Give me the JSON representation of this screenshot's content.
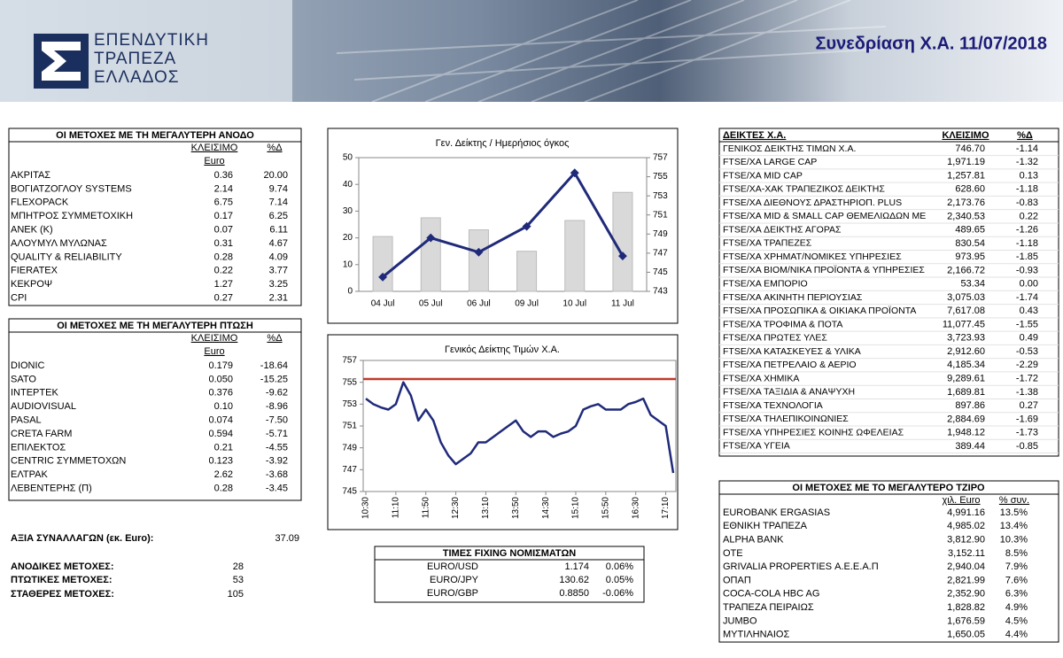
{
  "header": {
    "logo": [
      "ΕΠΕΝΔΥΤΙΚΗ",
      "ΤΡΑΠΕΖΑ",
      "ΕΛΛΑΔΟΣ"
    ],
    "title": "Συνεδρίαση Χ.Α. 11/07/2018"
  },
  "gainers": {
    "title": "ΟΙ ΜΕΤΟΧΕΣ ΜΕ ΤΗ ΜΕΓΑΛΥΤΕΡΗ ΑΝΟΔΟ",
    "headers": [
      "ΚΛΕΙΣΙΜΟ",
      "%Δ"
    ],
    "unit": "Euro",
    "rows": [
      [
        "ΑΚΡΙΤΑΣ",
        "0.36",
        "20.00"
      ],
      [
        "ΒΟΓΙΑΤΖΟΓΛΟΥ SYSTEMS",
        "2.14",
        "9.74"
      ],
      [
        "FLEXOPACK",
        "6.75",
        "7.14"
      ],
      [
        "ΜΠΗΤΡΟΣ ΣΥΜΜΕΤΟΧΙΚΗ",
        "0.17",
        "6.25"
      ],
      [
        "ΑΝΕΚ (Κ)",
        "0.07",
        "6.11"
      ],
      [
        "ΑΛΟΥΜΥΛ ΜΥΛΩΝΑΣ",
        "0.31",
        "4.67"
      ],
      [
        "QUALITY & RELIABILITY",
        "0.28",
        "4.09"
      ],
      [
        "FIERATEX",
        "0.22",
        "3.77"
      ],
      [
        "ΚΕΚΡΟΨ",
        "1.27",
        "3.25"
      ],
      [
        "CPI",
        "0.27",
        "2.31"
      ]
    ]
  },
  "losers": {
    "title": "ΟΙ ΜΕΤΟΧΕΣ ΜΕ ΤΗ ΜΕΓΑΛΥΤΕΡΗ ΠΤΩΣΗ",
    "headers": [
      "ΚΛΕΙΣΙΜΟ",
      "%Δ"
    ],
    "unit": "Euro",
    "rows": [
      [
        "DIONIC",
        "0.179",
        "-18.64"
      ],
      [
        "SATO",
        "0.050",
        "-15.25"
      ],
      [
        "ΙΝΤΕΡΤΕΚ",
        "0.376",
        "-9.62"
      ],
      [
        "AUDIOVISUAL",
        "0.10",
        "-8.96"
      ],
      [
        "PASAL",
        "0.074",
        "-7.50"
      ],
      [
        "CRETA FARM",
        "0.594",
        "-5.71"
      ],
      [
        "ΕΠΙΛΕΚΤΟΣ",
        "0.21",
        "-4.55"
      ],
      [
        "CENTRIC ΣΥΜΜΕΤΟΧΩΝ",
        "0.123",
        "-3.92"
      ],
      [
        "ΕΛΤΡΑΚ",
        "2.62",
        "-3.68"
      ],
      [
        "ΛΕΒΕΝΤΕΡΗΣ (Π)",
        "0.28",
        "-3.45"
      ]
    ]
  },
  "summary": [
    {
      "label": "ΑΞΙΑ ΣΥΝΑΛΛΑΓΩΝ (εκ. Euro):",
      "value": "37.09"
    },
    {
      "label": "ΑΝΟΔΙΚΕΣ ΜΕΤΟΧΕΣ:",
      "value": "28"
    },
    {
      "label": "ΠΤΩΤΙΚΕΣ ΜΕΤΟΧΕΣ:",
      "value": "53"
    },
    {
      "label": "ΣΤΑΘΕΡΕΣ ΜΕΤΟΧΕΣ:",
      "value": "105"
    }
  ],
  "chart_data": [
    {
      "type": "combo",
      "title": "Γεν. Δείκτης / Ημερήσιος όγκος",
      "categories": [
        "04 Jul",
        "05 Jul",
        "06 Jul",
        "09 Jul",
        "10 Jul",
        "11 Jul"
      ],
      "series": [
        {
          "type": "bar",
          "color": "#d9d9d9",
          "values": [
            20.5,
            27.5,
            23,
            15,
            26.5,
            37
          ]
        },
        {
          "type": "line",
          "axis": "y2",
          "color": "#1f2a7a",
          "values": [
            744.5,
            748.6,
            747.1,
            749.8,
            755.4,
            746.7
          ]
        }
      ],
      "ylim": [
        0,
        50
      ],
      "yticks": [
        0,
        10,
        20,
        30,
        40,
        50
      ],
      "y2lim": [
        743,
        757
      ],
      "y2ticks": [
        743,
        745,
        747,
        749,
        751,
        753,
        755,
        757
      ]
    },
    {
      "type": "line",
      "title": "Γενικός Δείκτης Τιμών Χ.Α.",
      "categories": [
        "10:30",
        null,
        null,
        null,
        "11:10",
        null,
        null,
        null,
        "11:50",
        null,
        null,
        null,
        "12:30",
        null,
        null,
        null,
        "13:10",
        null,
        null,
        null,
        "13:50",
        null,
        null,
        null,
        "14:30",
        null,
        null,
        null,
        "15:10",
        null,
        null,
        null,
        "15:50",
        null,
        null,
        null,
        "16:30",
        null,
        null,
        null,
        "17:10",
        null
      ],
      "series": [
        {
          "color": "#1f2a7a",
          "values": [
            753.5,
            753,
            752.7,
            752.5,
            753,
            755,
            753.8,
            751.5,
            752.5,
            751.5,
            749.5,
            748.3,
            747.5,
            748,
            748.5,
            749.5,
            749.5,
            750,
            750.5,
            751,
            751.5,
            750.5,
            750,
            750.5,
            750.5,
            750,
            750.3,
            750.5,
            751,
            752.5,
            752.8,
            753,
            752.5,
            752.5,
            752.5,
            753,
            753.2,
            753.5,
            752,
            751.5,
            751,
            746.7
          ]
        }
      ],
      "reference_line": {
        "value": 755.3,
        "color": "#c0392b"
      },
      "ylim": [
        745,
        757
      ],
      "yticks": [
        745,
        747,
        749,
        751,
        753,
        755,
        757
      ]
    }
  ],
  "fx": {
    "title": "ΤΙΜΕΣ FIXING ΝΟΜΙΣΜΑΤΩΝ",
    "rows": [
      [
        "EURO/USD",
        "1.174",
        "0.06%"
      ],
      [
        "EURO/JPY",
        "130.62",
        "0.05%"
      ],
      [
        "EURO/GBP",
        "0.8850",
        "-0.06%"
      ]
    ]
  },
  "indices": {
    "headers": [
      "ΔΕΙΚΤΕΣ Χ.Α.",
      "ΚΛΕΙΣΙΜΟ",
      "%Δ"
    ],
    "rows": [
      [
        "ΓΕΝΙΚΟΣ ΔΕΙΚΤΗΣ ΤΙΜΩΝ Χ.Α.",
        "746.70",
        "-1.14"
      ],
      [
        "FTSE/XA LARGE CAP",
        "1,971.19",
        "-1.32"
      ],
      [
        "FTSE/XA MID CAP",
        "1,257.81",
        "0.13"
      ],
      [
        "FTSE/XA-XAK ΤΡΑΠΕΖΙΚΟΣ ΔΕΙΚΤΗΣ",
        "628.60",
        "-1.18"
      ],
      [
        "FTSE/XA ΔΙΕΘΝΟΥΣ ΔΡΑΣΤΗΡΙΟΠ. PLUS",
        "2,173.76",
        "-0.83"
      ],
      [
        "FTSE/XA MID & SMALL CAP ΘΕΜΕΛΙΩΔΩΝ ΜΕ",
        "2,340.53",
        "0.22"
      ],
      [
        "FTSE/XA ΔΕΙΚΤΗΣ ΑΓΟΡΑΣ",
        "489.65",
        "-1.26"
      ],
      [
        "FTSE/XA ΤΡΑΠΕΖΕΣ",
        "830.54",
        "-1.18"
      ],
      [
        "FTSE/XA ΧΡΗΜΑΤ/ΝΟΜΙΚΕΣ ΥΠΗΡΕΣΙΕΣ",
        "973.95",
        "-1.85"
      ],
      [
        "FTSE/XA ΒΙΟΜ/ΝΙΚΑ ΠΡΟΪΟΝΤΑ & ΥΠΗΡΕΣΙΕΣ",
        "2,166.72",
        "-0.93"
      ],
      [
        "FTSE/XA ΕΜΠΟΡΙΟ",
        "53.34",
        "0.00"
      ],
      [
        "FTSE/XA ΑΚΙΝΗΤΗ ΠΕΡΙΟΥΣΙΑΣ",
        "3,075.03",
        "-1.74"
      ],
      [
        "FTSE/XA ΠΡΟΣΩΠΙΚΑ & ΟΙΚΙΑΚΑ ΠΡΟΪΟΝΤΑ",
        "7,617.08",
        "0.43"
      ],
      [
        "FTSE/XA ΤΡΟΦΙΜΑ & ΠΟΤΑ",
        "11,077.45",
        "-1.55"
      ],
      [
        "FTSE/XA ΠΡΩΤΕΣ ΥΛΕΣ",
        "3,723.93",
        "0.49"
      ],
      [
        "FTSE/XA ΚΑΤΑΣΚΕΥΕΣ & ΥΛΙΚΑ",
        "2,912.60",
        "-0.53"
      ],
      [
        "FTSE/XA ΠΕΤΡΕΛΑΙΟ & ΑΕΡΙΟ",
        "4,185.34",
        "-2.29"
      ],
      [
        "FTSE/XA ΧΗΜΙΚΑ",
        "9,289.61",
        "-1.72"
      ],
      [
        "FTSE/XA ΤΑΞΙΔΙΑ & ΑΝΑΨΥΧΗ",
        "1,689.81",
        "-1.38"
      ],
      [
        "FTSE/XA ΤΕΧΝΟΛΟΓΙΑ",
        "897.86",
        "0.27"
      ],
      [
        "FTSE/XA ΤΗΛΕΠΙΚΟΙΝΩΝΙΕΣ",
        "2,884.69",
        "-1.69"
      ],
      [
        "FTSE/XA ΥΠΗΡΕΣΙΕΣ ΚΟΙΝΗΣ ΩΦΕΛΕΙΑΣ",
        "1,948.12",
        "-1.73"
      ],
      [
        "FTSE/XA ΥΓΕΙΑ",
        "389.44",
        "-0.85"
      ]
    ]
  },
  "turnover": {
    "title": "ΟΙ ΜΕΤΟΧΕΣ ΜΕ ΤΟ ΜΕΓΑΛΥΤΕΡΟ ΤΖΙΡΟ",
    "headers": [
      "χιλ. Euro",
      "% συν."
    ],
    "rows": [
      [
        "EUROBANK ERGASIAS",
        "4,991.16",
        "13.5%"
      ],
      [
        "ΕΘΝΙΚΗ ΤΡΑΠΕΖΑ",
        "4,985.02",
        "13.4%"
      ],
      [
        "ALPHA BANK",
        "3,812.90",
        "10.3%"
      ],
      [
        "ΟΤΕ",
        "3,152.11",
        "8.5%"
      ],
      [
        "GRIVALIA PROPERTIES Α.Ε.Ε.Α.Π",
        "2,940.04",
        "7.9%"
      ],
      [
        "ΟΠΑΠ",
        "2,821.99",
        "7.6%"
      ],
      [
        "COCA-COLA HBC AG",
        "2,352.90",
        "6.3%"
      ],
      [
        "ΤΡΑΠΕΖΑ ΠΕΙΡΑΙΩΣ",
        "1,828.82",
        "4.9%"
      ],
      [
        "JUMBO",
        "1,676.59",
        "4.5%"
      ],
      [
        "ΜΥΤΙΛΗΝΑΙΟΣ",
        "1,650.05",
        "4.4%"
      ]
    ]
  }
}
